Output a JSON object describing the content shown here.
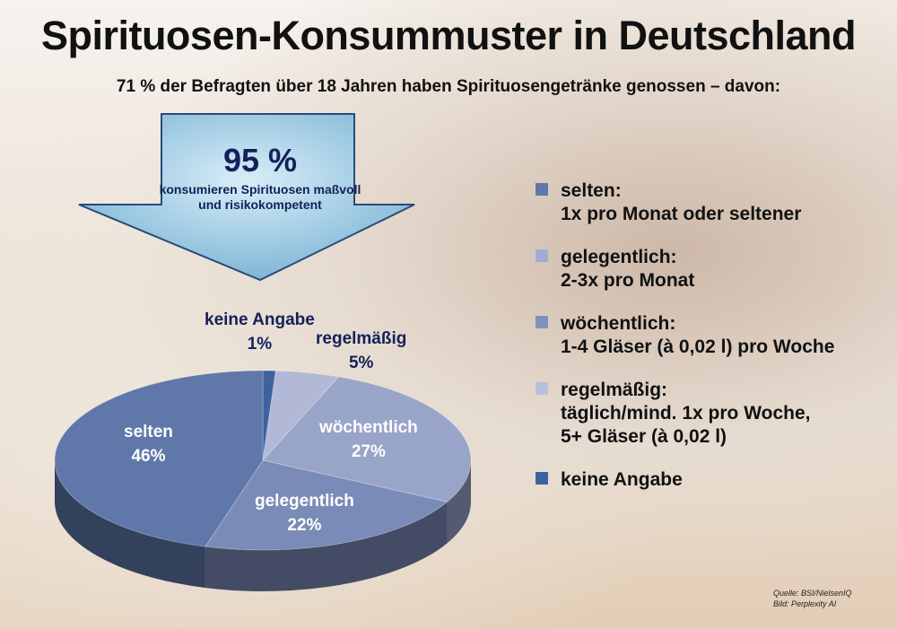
{
  "title": "Spirituosen-Konsummuster in Deutschland",
  "subtitle": "71 % der Befragten über 18 Jahren haben Spirituosengetränke genossen – davon:",
  "callout": {
    "value": "95 %",
    "text": "konsumieren Spirituosen maßvoll und risikokompetent"
  },
  "chart_data": {
    "type": "pie",
    "style": "3d",
    "categories": [
      "keine Angabe",
      "regelmäßig",
      "wöchentlich",
      "gelegentlich",
      "selten"
    ],
    "values": [
      1,
      5,
      27,
      22,
      46
    ],
    "labels": [
      "1%",
      "5%",
      "27%",
      "22%",
      "46%"
    ],
    "colors": [
      "#3e62a0",
      "#b1b9d7",
      "#99a4c9",
      "#7b8bb7",
      "#5f77a9"
    ]
  },
  "legend": [
    {
      "label": "selten:\n1x pro Monat oder seltener",
      "color": "#5f77a9"
    },
    {
      "label": "gelegentlich:\n2-3x pro Monat",
      "color": "#a2acd2"
    },
    {
      "label": "wöchentlich:\n1-4 Gläser (à 0,02 l) pro Woche",
      "color": "#8090c0"
    },
    {
      "label": "regelmäßig:\ntäglich/mind. 1x pro Woche,\n5+ Gläser (à 0,02 l)",
      "color": "#b8c0de"
    },
    {
      "label": "keine Angabe",
      "color": "#3e62a0"
    }
  ],
  "source": {
    "line1": "Quelle: BSI/NielsenIQ",
    "line2": "Bild: Perplexity AI"
  }
}
